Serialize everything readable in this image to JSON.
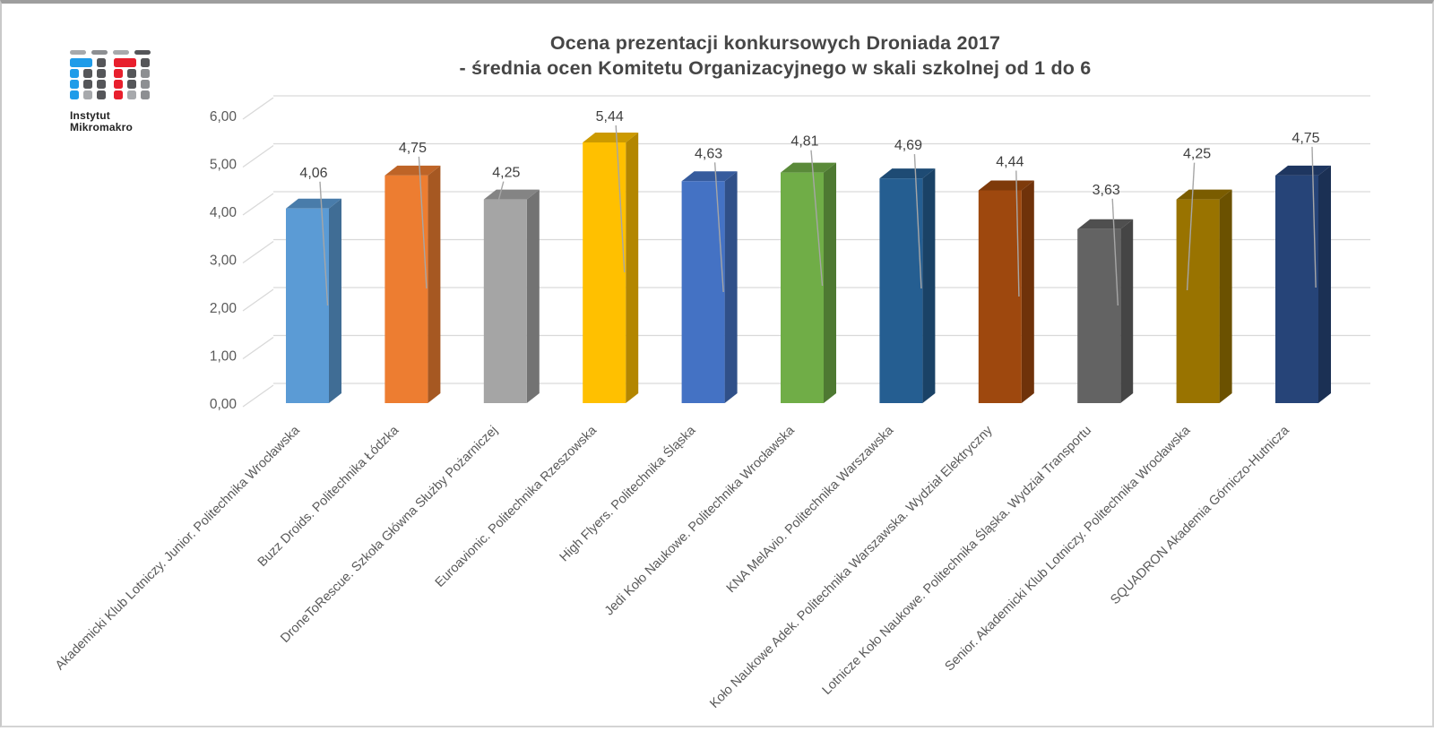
{
  "logo": {
    "line1": "Instytut",
    "line2": "Mikromakro",
    "palette": {
      "blue": "#1F9CE9",
      "red": "#E81F2D",
      "dark": "#555659",
      "mid": "#8D8F92",
      "light": "#A7A9AC"
    }
  },
  "chart_data": {
    "type": "bar",
    "projection": "3d-column",
    "title_line1": "Ocena prezentacji konkursowych Droniada 2017",
    "title_line2": "- średnia ocen Komitetu Organizacyjnego w skali szkolnej od 1 do 6",
    "categories": [
      "Akademicki Klub Lotniczy. Junior. Politechnika Wrocławska",
      "Buzz Droids. Politechnika Łódzka",
      "DroneToRescue. Szkoła Główna Służby Pożarniczej",
      "Euroavionic. Politechnika Rzeszowska",
      "High Flyers. Politechnika Śląska",
      "Jedi Koło Naukowe. Politechnika Wrocławska",
      "KNA MelAvio. Politechnika Warszawska",
      "Koło Naukowe Adek. Politechnika Warszawska. Wydział Elektryczny",
      "Lotnicze Koło Naukowe. Politechnika Śląska. Wydział Transportu",
      "Senior. Akademicki Klub Lotniczy. Politechnika Wrocławska",
      "SQUADRON Akademia Górniczo-Hutnicza"
    ],
    "values": [
      4.06,
      4.75,
      4.25,
      5.44,
      4.63,
      4.81,
      4.69,
      4.44,
      3.63,
      4.25,
      4.75
    ],
    "value_labels": [
      "4,06",
      "4,75",
      "4,25",
      "5,44",
      "4,63",
      "4,81",
      "4,69",
      "4,44",
      "3,63",
      "4,25",
      "4,75"
    ],
    "bar_colors": [
      "#5B9BD5",
      "#ED7D31",
      "#A5A5A5",
      "#FFC000",
      "#4472C4",
      "#70AD47",
      "#255E91",
      "#9E480E",
      "#636363",
      "#997300",
      "#264478"
    ],
    "ylim": [
      0,
      6
    ],
    "ytick_step": 1,
    "ytick_labels": [
      "0,00",
      "1,00",
      "2,00",
      "3,00",
      "4,00",
      "5,00",
      "6,00"
    ],
    "grid": true,
    "legend": "none",
    "gridline_color": "#D9D9D9",
    "axis_text_color": "#595959",
    "label_text_color": "#404040",
    "leader_line_color": "#A6A6A6"
  }
}
